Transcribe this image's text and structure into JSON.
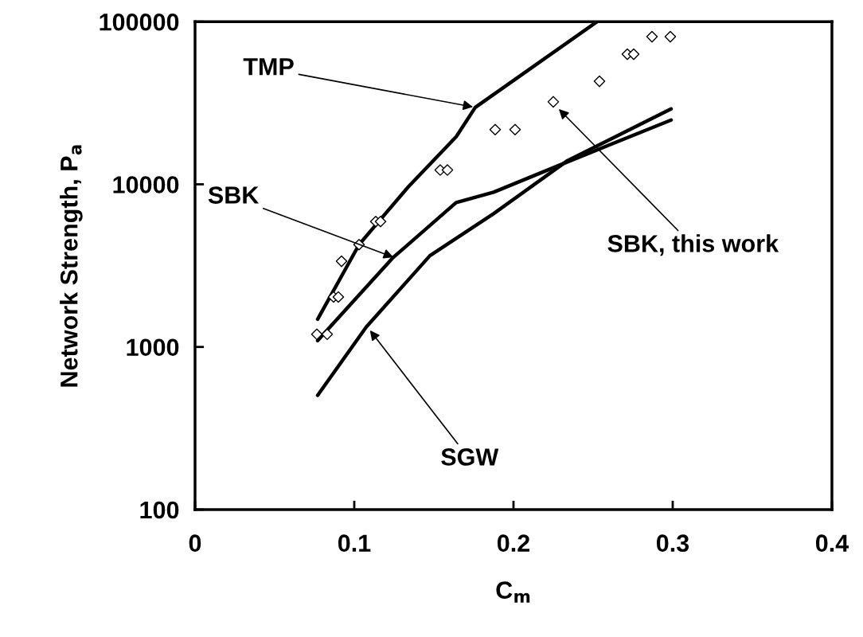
{
  "chart_data": {
    "type": "line",
    "xlabel": "C$_{m}$",
    "ylabel": "Network Strength, P$_{a}$",
    "log": "y",
    "xlim": [
      0,
      0.4
    ],
    "ylim": [
      100,
      100000
    ],
    "xticks": [
      0,
      0.1,
      0.2,
      0.3,
      0.4
    ],
    "yticks": [
      100,
      1000,
      10000,
      100000
    ],
    "grid": false,
    "legend": false,
    "series": [
      {
        "color": "#000000",
        "marker": "none",
        "line_style": "solid",
        "x": [
          0.077,
          0.103,
          0.114,
          0.134,
          0.164,
          0.176,
          0.2525
        ],
        "values": [
          1482,
          4256,
          5700,
          9660,
          19600,
          29700,
          100000
        ]
      },
      {
        "color": "#000000",
        "marker": "none",
        "line_style": "solid",
        "x": [
          0.077,
          0.124,
          0.164,
          0.1875,
          0.236,
          0.299
        ],
        "values": [
          1094,
          3516,
          7720,
          8940,
          14000,
          24840
        ]
      },
      {
        "color": "#000000",
        "marker": "none",
        "line_style": "solid",
        "x": [
          0.077,
          0.1075,
          0.1475,
          0.1875,
          0.234,
          0.299
        ],
        "values": [
          504,
          1324,
          3640,
          6600,
          14000,
          29060
        ]
      },
      {
        "type": "scatter",
        "color": "#000000",
        "marker": "diamond",
        "x": [
          0.0765,
          0.083,
          0.087,
          0.09,
          0.092,
          0.103,
          0.1135,
          0.1165,
          0.154,
          0.1585,
          0.1885,
          0.201,
          0.225,
          0.254,
          0.2715,
          0.2755,
          0.287,
          0.2985
        ],
        "values": [
          1197,
          1197,
          2029,
          2029,
          3365,
          4256,
          5902,
          5902,
          12240,
          12240,
          21700,
          21700,
          32150,
          43000,
          63100,
          63100,
          80800,
          80800
        ]
      }
    ],
    "annotations": [
      {
        "text": "TMP",
        "x": 0.176,
        "y": 29700
      },
      {
        "text": "SBK",
        "x": 0.126,
        "y": 3520
      },
      {
        "text": "SBK, this work",
        "x": 0.2275,
        "y": 29700
      },
      {
        "text": "SGW",
        "x": 0.109,
        "y": 1297
      }
    ]
  }
}
